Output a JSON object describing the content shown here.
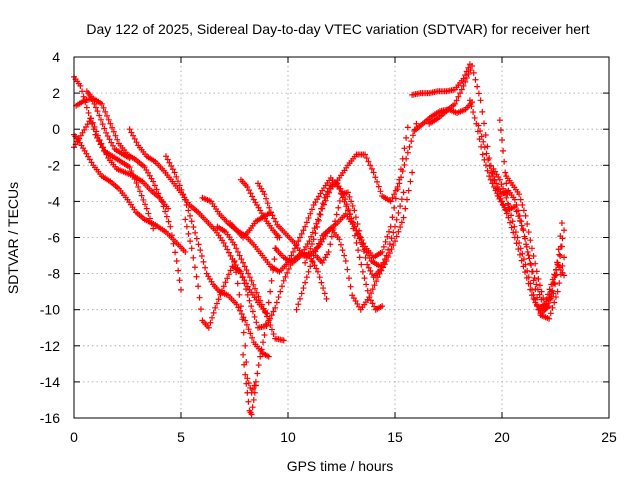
{
  "chart_data": {
    "type": "scatter",
    "title": "Day 122 of 2025, Sidereal Day-to-day VTEC variation (SDTVAR) for receiver hert",
    "xlabel": "GPS time / hours",
    "ylabel": "SDTVAR / TECUs",
    "xlim": [
      0,
      25
    ],
    "ylim": [
      -16,
      4
    ],
    "xticks": [
      0,
      5,
      10,
      15,
      20,
      25
    ],
    "yticks": [
      -16,
      -14,
      -12,
      -10,
      -8,
      -6,
      -4,
      -2,
      0,
      2,
      4
    ],
    "grid": true,
    "marker": "plus",
    "color": "#ff0000",
    "series": [
      {
        "x": [
          0.0,
          0.3,
          0.6,
          1.0,
          1.4,
          1.8,
          2.2,
          2.6,
          3.0,
          3.4,
          3.7
        ],
        "y": [
          2.9,
          2.4,
          1.2,
          -0.3,
          -1.2,
          -1.5,
          -1.8,
          -2.1,
          -3.2,
          -4.4,
          -5.5
        ]
      },
      {
        "x": [
          0.0,
          0.4,
          0.8,
          1.2,
          1.6,
          2.0,
          2.4,
          2.8,
          3.2,
          3.6,
          4.0,
          4.4
        ],
        "y": [
          -1.0,
          -0.2,
          0.6,
          -0.6,
          -1.6,
          -2.2,
          -2.4,
          -2.6,
          -2.9,
          -3.4,
          -3.8,
          -4.4
        ]
      },
      {
        "x": [
          0.0,
          0.2,
          0.5,
          0.9,
          1.3,
          1.7,
          2.1,
          2.5,
          2.9,
          3.3,
          3.8,
          4.3,
          4.8,
          5.2
        ],
        "y": [
          -0.3,
          -0.6,
          -1.2,
          -2.0,
          -2.6,
          -2.9,
          -3.3,
          -3.9,
          -4.6,
          -5.0,
          -5.3,
          -5.7,
          -6.3,
          -6.8
        ]
      },
      {
        "x": [
          0.1,
          0.5,
          0.9,
          1.3,
          1.7,
          2.1,
          2.5,
          2.9,
          3.3,
          3.7,
          4.1,
          4.5,
          4.8,
          5.0
        ],
        "y": [
          1.3,
          1.6,
          1.7,
          1.4,
          0.3,
          -0.8,
          -1.4,
          -1.7,
          -2.1,
          -2.9,
          -4.0,
          -5.4,
          -7.3,
          -8.9
        ]
      },
      {
        "x": [
          0.6,
          0.8,
          1.1,
          1.5,
          1.9,
          2.3,
          2.6
        ],
        "y": [
          2.1,
          1.8,
          1.0,
          -0.2,
          -1.1,
          -1.4,
          -1.6
        ]
      },
      {
        "x": [
          2.6,
          3.0,
          3.4,
          3.8,
          4.2,
          4.6,
          5.0,
          5.4,
          5.8,
          6.2,
          6.6,
          7.0,
          7.4,
          7.8,
          8.2,
          8.6,
          9.0
        ],
        "y": [
          0.0,
          -0.9,
          -1.5,
          -1.8,
          -2.3,
          -2.9,
          -3.5,
          -4.2,
          -4.6,
          -5.1,
          -5.6,
          -6.3,
          -7.2,
          -8.0,
          -8.9,
          -9.6,
          -10.2
        ]
      },
      {
        "x": [
          4.3,
          4.7,
          5.1,
          5.5,
          5.9,
          6.2,
          6.5,
          6.8,
          7.2,
          7.6,
          8.0,
          8.4,
          8.8,
          9.1
        ],
        "y": [
          -1.5,
          -2.4,
          -3.6,
          -5.1,
          -6.7,
          -8.0,
          -8.6,
          -9.0,
          -9.2,
          -9.7,
          -10.6,
          -11.8,
          -12.4,
          -12.6
        ]
      },
      {
        "x": [
          5.2,
          5.5,
          5.8,
          6.0,
          6.3,
          6.6,
          7.0,
          7.4,
          7.8,
          8.2,
          8.6,
          9.0,
          9.4,
          9.8,
          10.2,
          10.6,
          11.0,
          11.4,
          11.8
        ],
        "y": [
          -5.0,
          -6.6,
          -8.7,
          -10.6,
          -11.0,
          -9.9,
          -8.7,
          -7.6,
          -7.9,
          -9.5,
          -11.0,
          -10.9,
          -9.9,
          -8.4,
          -7.3,
          -6.9,
          -7.0,
          -7.9,
          -9.4
        ]
      },
      {
        "x": [
          6.0,
          6.4,
          6.8,
          7.2,
          7.6,
          8.0,
          8.4,
          8.8,
          9.2,
          9.6,
          10.0,
          10.4,
          10.8,
          11.2,
          11.6,
          12.0,
          12.4,
          12.8,
          13.2,
          13.6,
          14.0,
          14.4,
          14.8,
          15.2,
          15.6
        ],
        "y": [
          -3.8,
          -4.0,
          -4.7,
          -5.2,
          -5.6,
          -5.9,
          -6.4,
          -7.0,
          -7.6,
          -7.9,
          -7.4,
          -6.4,
          -5.4,
          -4.2,
          -3.4,
          -2.7,
          -3.3,
          -4.5,
          -5.6,
          -6.5,
          -7.1,
          -6.8,
          -5.4,
          -2.8,
          0.1
        ]
      },
      {
        "x": [
          6.7,
          7.1,
          7.5,
          7.9,
          8.3,
          8.7,
          9.1,
          9.4,
          9.8
        ],
        "y": [
          -5.4,
          -5.7,
          -6.4,
          -7.4,
          -8.4,
          -9.5,
          -10.6,
          -11.6,
          -11.7
        ]
      },
      {
        "x": [
          7.3,
          7.6,
          7.9,
          8.2,
          8.5,
          8.8,
          9.2
        ],
        "y": [
          -5.2,
          -5.6,
          -6.0,
          -5.6,
          -5.1,
          -4.9,
          -4.6
        ]
      },
      {
        "x": [
          7.5,
          7.8,
          8.0,
          8.1,
          8.3,
          8.5,
          8.7,
          8.9,
          9.1,
          9.3,
          9.5
        ],
        "y": [
          -7.3,
          -9.8,
          -12.0,
          -13.8,
          -14.6,
          -14.0,
          -12.6,
          -11.4,
          -9.6,
          -7.8,
          -6.0
        ]
      },
      {
        "x": [
          7.9,
          8.0,
          8.1,
          8.2,
          8.3,
          8.4,
          8.5
        ],
        "y": [
          -12.5,
          -13.6,
          -14.6,
          -15.6,
          -15.8,
          -15.0,
          -14.2
        ]
      },
      {
        "x": [
          7.8,
          8.1,
          8.4,
          8.7,
          9.0,
          9.3,
          9.6
        ],
        "y": [
          -2.8,
          -3.2,
          -3.9,
          -4.5,
          -5.1,
          -5.6,
          -6.0
        ]
      },
      {
        "x": [
          8.6,
          8.9,
          9.2,
          9.5,
          9.9,
          10.3,
          10.7,
          11.1,
          11.5,
          11.9,
          12.3,
          12.7,
          13.1,
          13.5,
          13.9,
          14.3
        ],
        "y": [
          -3.0,
          -3.6,
          -4.6,
          -5.3,
          -5.8,
          -6.3,
          -7.0,
          -6.9,
          -6.4,
          -5.6,
          -5.2,
          -4.7,
          -5.4,
          -6.5,
          -7.3,
          -7.6
        ]
      },
      {
        "x": [
          9.4,
          9.8,
          10.2,
          10.6,
          11.0,
          11.4,
          11.7,
          12.0,
          12.3,
          12.6,
          12.9,
          13.2,
          13.5,
          13.8,
          14.1,
          14.4
        ],
        "y": [
          -6.6,
          -7.1,
          -7.4,
          -7.0,
          -6.2,
          -5.0,
          -3.8,
          -3.1,
          -3.0,
          -3.6,
          -4.7,
          -6.3,
          -7.9,
          -9.3,
          -10.0,
          -9.8
        ]
      },
      {
        "x": [
          10.4,
          10.8,
          11.2,
          11.6,
          12.0,
          12.4,
          12.7,
          13.0,
          13.4,
          13.8,
          14.2,
          14.6,
          15.0,
          15.4,
          15.8
        ],
        "y": [
          -10.0,
          -8.5,
          -7.0,
          -5.9,
          -5.5,
          -6.1,
          -7.3,
          -9.2,
          -10.0,
          -9.3,
          -8.2,
          -7.3,
          -6.2,
          -4.9,
          -2.4
        ]
      },
      {
        "x": [
          10.8,
          11.2,
          11.6,
          12.0,
          12.4,
          12.8,
          13.2,
          13.6,
          14.0,
          14.4,
          14.8,
          15.2,
          15.6,
          16.0
        ],
        "y": [
          -7.4,
          -6.1,
          -4.4,
          -3.3,
          -2.7,
          -2.0,
          -1.4,
          -1.4,
          -2.4,
          -3.7,
          -4.0,
          -3.0,
          -1.3,
          0.3
        ]
      },
      {
        "x": [
          11.3,
          11.6,
          11.9,
          12.2,
          12.5,
          12.8,
          13.1,
          13.4,
          13.7,
          14.0,
          14.3,
          14.6,
          15.0,
          15.4
        ],
        "y": [
          -7.0,
          -7.4,
          -6.8,
          -5.1,
          -3.6,
          -3.5,
          -4.5,
          -6.0,
          -7.5,
          -8.2,
          -7.8,
          -7.0,
          -5.4,
          -3.5
        ]
      },
      {
        "x": [
          15.8,
          16.2,
          16.6,
          17.0,
          17.4,
          17.8,
          18.2,
          18.5
        ],
        "y": [
          1.9,
          2.0,
          2.0,
          2.1,
          2.1,
          2.2,
          2.8,
          3.6
        ]
      },
      {
        "x": [
          15.9,
          16.3,
          16.7,
          17.1,
          17.5,
          17.9,
          18.3,
          18.6
        ],
        "y": [
          -0.1,
          0.3,
          0.7,
          1.0,
          1.1,
          0.9,
          1.1,
          1.5
        ]
      },
      {
        "x": [
          16.6,
          17.0,
          17.4,
          17.8,
          18.2,
          18.6,
          19.0,
          19.4,
          19.8,
          20.2,
          20.6,
          21.0,
          21.4,
          21.8,
          22.2,
          22.6,
          22.9
        ],
        "y": [
          0.3,
          0.6,
          1.0,
          1.4,
          2.4,
          3.5,
          1.6,
          -1.6,
          -3.7,
          -4.5,
          -4.3,
          -5.6,
          -7.9,
          -10.3,
          -10.5,
          -9.0,
          -7.1
        ]
      },
      {
        "x": [
          18.5,
          18.8,
          19.1,
          19.4,
          19.7,
          20.0,
          20.3,
          20.6,
          21.0,
          21.4,
          21.8,
          22.2,
          22.5,
          22.8
        ],
        "y": [
          1.6,
          0.3,
          -1.4,
          -2.6,
          -3.4,
          -4.0,
          -4.9,
          -6.0,
          -7.6,
          -9.2,
          -10.2,
          -9.8,
          -8.1,
          -5.2
        ]
      },
      {
        "x": [
          18.9,
          19.2,
          19.5,
          19.8,
          20.0,
          20.3,
          20.6,
          20.9,
          21.2,
          21.6,
          22.0,
          22.4,
          22.8
        ],
        "y": [
          0.2,
          -1.0,
          -2.4,
          -3.2,
          -3.6,
          -3.4,
          -3.9,
          -5.1,
          -6.8,
          -8.6,
          -10.0,
          -9.1,
          -6.5
        ]
      },
      {
        "x": [
          19.6,
          19.9,
          20.2,
          20.5,
          20.8,
          21.1,
          21.4,
          21.7,
          22.0,
          22.3,
          22.6,
          22.9
        ],
        "y": [
          -2.2,
          -2.8,
          -3.8,
          -5.1,
          -6.3,
          -7.5,
          -8.9,
          -10.0,
          -9.7,
          -8.6,
          -7.5,
          -8.1
        ]
      },
      {
        "x": [
          19.9,
          20.0,
          20.1,
          20.2,
          20.3
        ],
        "y": [
          0.5,
          -0.6,
          -1.8,
          -3.0,
          -4.2
        ]
      },
      {
        "x": [
          20.2,
          20.5,
          20.8,
          21.1,
          21.4,
          21.7,
          22.0,
          22.3,
          22.6,
          22.9
        ],
        "y": [
          -2.6,
          -3.1,
          -3.6,
          -4.8,
          -6.6,
          -8.3,
          -9.7,
          -9.0,
          -7.4,
          -5.6
        ]
      }
    ]
  }
}
